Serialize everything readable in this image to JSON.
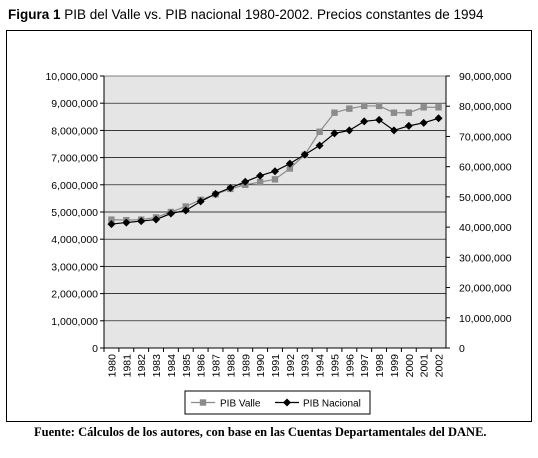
{
  "title": {
    "prefix": "Figura 1",
    "text": "PIB del Valle vs. PIB nacional 1980-2002. Precios constantes de 1994"
  },
  "source": "Fuente: Cálculos de los autores, con base en las Cuentas Departamentales del DANE.",
  "colors": {
    "plot_bg": "#e5e5e5",
    "valle": "#8c8c8c",
    "nacional": "#000000"
  },
  "chart_data": {
    "type": "line",
    "x": [
      "1980",
      "1981",
      "1982",
      "1983",
      "1984",
      "1985",
      "1986",
      "1987",
      "1988",
      "1989",
      "1990",
      "1991",
      "1992",
      "1993",
      "1994",
      "1995",
      "1996",
      "1997",
      "1998",
      "1999",
      "2000",
      "2001",
      "2002"
    ],
    "series": [
      {
        "name": "PIB Valle",
        "axis": "left",
        "marker": "square",
        "values": [
          4720000,
          4700000,
          4720000,
          4800000,
          5000000,
          5200000,
          5450000,
          5650000,
          5850000,
          6000000,
          6100000,
          6200000,
          6600000,
          7100000,
          7950000,
          8650000,
          8800000,
          8900000,
          8900000,
          8650000,
          8650000,
          8850000,
          8850000
        ]
      },
      {
        "name": "PIB Nacional",
        "axis": "right",
        "marker": "diamond",
        "values": [
          41000000,
          41500000,
          42000000,
          42500000,
          44500000,
          45500000,
          48500000,
          51000000,
          53000000,
          55000000,
          57000000,
          58500000,
          61000000,
          64000000,
          67000000,
          71000000,
          72000000,
          75000000,
          75500000,
          72000000,
          73500000,
          74500000,
          76000000
        ]
      }
    ],
    "y_left": {
      "range": [
        0,
        10000000
      ],
      "ticks": [
        "0",
        "1,000,000",
        "2,000,000",
        "3,000,000",
        "4,000,000",
        "5,000,000",
        "6,000,000",
        "7,000,000",
        "8,000,000",
        "9,000,000",
        "10,000,000"
      ]
    },
    "y_right": {
      "range": [
        0,
        90000000
      ],
      "ticks": [
        "0",
        "10,000,000",
        "20,000,000",
        "30,000,000",
        "40,000,000",
        "50,000,000",
        "60,000,000",
        "70,000,000",
        "80,000,000",
        "90,000,000"
      ]
    },
    "grid": true,
    "legend": "bottom"
  }
}
